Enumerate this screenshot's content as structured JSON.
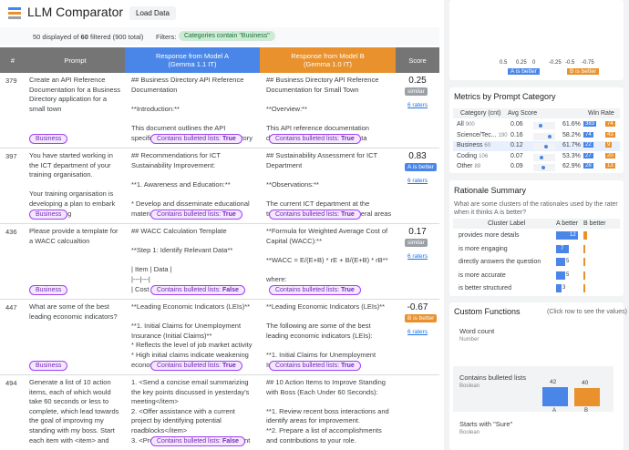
{
  "header": {
    "title": "LLM Comparator",
    "load_button": "Load Data"
  },
  "filter_bar": {
    "count_prefix": "50 displayed of",
    "count_filtered": "60",
    "count_suffix": "filtered (900 total)",
    "filters_label": "Filters:",
    "filter_chip": "Categories contain \"Business\""
  },
  "table": {
    "columns": [
      "#",
      "Prompt",
      "Response from Model A\n(Gemma 1.1 IT)",
      "Response from Model B\n(Gemma 1.0 IT)",
      "Score"
    ],
    "feature_label": "Contains bulleted lists:",
    "rows": [
      {
        "id": "379",
        "prompt": "Create an API Reference Documentation for a Business Directory application for a small town",
        "category": "Business",
        "response_a": "## Business Directory API Reference Documentation\n\n**Introduction:**\n\nThis document outlines the API specifications for the Business Directory application for the town",
        "feature_a": "True",
        "response_b": "## Business Directory API Reference Documentation for Small Town\n\n**Overview:**\n\nThis API reference documentation describes the endpoints and data structures for the Business Directory",
        "feature_b": "True",
        "score": "0.25",
        "verdict": "similar",
        "raters": "6 raters"
      },
      {
        "id": "397",
        "prompt": "You have started working in the ICT department of your training organisation.\n\nYour training organisation is developing a plan to embark on an exciting transformational journey towards greater",
        "category": "Business",
        "response_a": "## Recommendations for ICT Sustainability Improvement:\n\n**1. Awareness and Education:**\n\n* Develop and disseminate educational materials on the importance of ICT",
        "feature_a": "True",
        "response_b": "## Sustainability Assessment for ICT Department\n\n**Observations:**\n\nThe current ICT department at the training organisation reveal several areas where sustainability improvements could",
        "feature_b": "True",
        "score": "0.83",
        "verdict": "A is better",
        "raters": "6 raters"
      },
      {
        "id": "436",
        "prompt": "Please provide a template for a WACC calcualtion",
        "category": "Business",
        "response_a": "## WACC Calculation Template\n\n**Step 1: Identify Relevant Data**\n\n| Item | Data |\n|---|---|\n| Cost of Debt (Before Tax) |",
        "feature_a": "False",
        "response_b": "**Formula for Weighted Average Cost of Capital (WACC):**\n\n**WACC = E/(E+B) * rE + B/(E+B) * rB**\n\nwhere:\n\n* **E** = Market value of equity\n* **rE** = Average cost",
        "feature_b": "True",
        "score": "0.17",
        "verdict": "similar",
        "raters": "6 raters"
      },
      {
        "id": "447",
        "prompt": "What are some of the best leading economic indicators?",
        "category": "Business",
        "response_a": "**Leading Economic Indicators (LEIs)**\n\n**1. Initial Claims for Unemployment Insurance (Initial Claims)**\n* Reflects the level of job market activity\n* High initial claims indicate weakening economic growth",
        "feature_a": "True",
        "response_b": "**Leading Economic Indicators (LEIs)**\n\nThe following are some of the best leading economic indicators (LEIs):\n\n**1. Initial Claims for Unemployment Insurance:**",
        "feature_b": "True",
        "score": "-0.67",
        "verdict": "B is better",
        "raters": "6 raters"
      },
      {
        "id": "494",
        "prompt": "Generate a list of 10 action items, each of which would take 60 seconds or less to complete, which lead towards the goal of improving my standing with my boss. Start each item with <item> and end",
        "response_a": "1. <Send a concise email summarizing the key points discussed in yesterday's meeting</item>\n2. <Offer assistance with a current project by identifying potential roadblocks</item>\n3. <Prepare a report highlighting recent achievements and progress on assigned",
        "feature_a": "False",
        "response_b": "## 10 Action Items to Improve Standing with Boss (Each Under 60 Seconds):\n\n**1. Review recent boss interactions and identify areas for improvement.\n**2. Prepare a list of accomplishments and contributions to your role."
      }
    ]
  },
  "score_histogram": {
    "a_label": "A is better",
    "b_label": "B is better",
    "ticks": [
      "0.5",
      "0.25",
      "0",
      "-0.25",
      "-0.5",
      "-0.75"
    ]
  },
  "metrics": {
    "title": "Metrics by Prompt Category",
    "columns": [
      "Category (cnt)",
      "Avg Score",
      "Win Rate"
    ],
    "rows": [
      {
        "category": "All",
        "count": "900",
        "avg_score": 0.06,
        "win_rate": "61.6%",
        "a_wins": 383,
        "b_wins": 74
      },
      {
        "category": "Science/Tec...",
        "count": "190",
        "avg_score": 0.16,
        "win_rate": "58.2%",
        "a_wins": 74,
        "b_wins": 43
      },
      {
        "category": "Business",
        "count": "60",
        "avg_score": 0.12,
        "win_rate": "61.7%",
        "a_wins": 22,
        "b_wins": 9
      },
      {
        "category": "Coding",
        "count": "106",
        "avg_score": 0.07,
        "win_rate": "53.3%",
        "a_wins": 27,
        "b_wins": 20
      },
      {
        "category": "Other",
        "count": "89",
        "avg_score": 0.09,
        "win_rate": "62.9%",
        "a_wins": 28,
        "b_wins": 13
      }
    ]
  },
  "rationale": {
    "title": "Rationale Summary",
    "question": "What are some clusters of the rationales used by the rater when it thinks A is better?",
    "columns": [
      "Cluster Label",
      "A better",
      "B better"
    ],
    "rows": [
      {
        "label": "provides more details",
        "a": 12,
        "b": 2
      },
      {
        "label": "is more engaging",
        "a": 7,
        "b": 1
      },
      {
        "label": "directly answers the question",
        "a": 5,
        "b": 1
      },
      {
        "label": "is more accurate",
        "a": 5,
        "b": 1
      },
      {
        "label": "is better structured",
        "a": 3,
        "b": 1
      }
    ]
  },
  "custom_functions": {
    "title": "Custom Functions",
    "hint": "(Click row to see the values)",
    "functions": [
      {
        "name": "Word count",
        "type": "Number"
      },
      {
        "name": "Contains bulleted lists",
        "type": "Boolean",
        "a": 42,
        "b": 40,
        "a_label": "A",
        "b_label": "B"
      },
      {
        "name": "Starts with \"Sure\"",
        "type": "Boolean"
      }
    ]
  }
}
